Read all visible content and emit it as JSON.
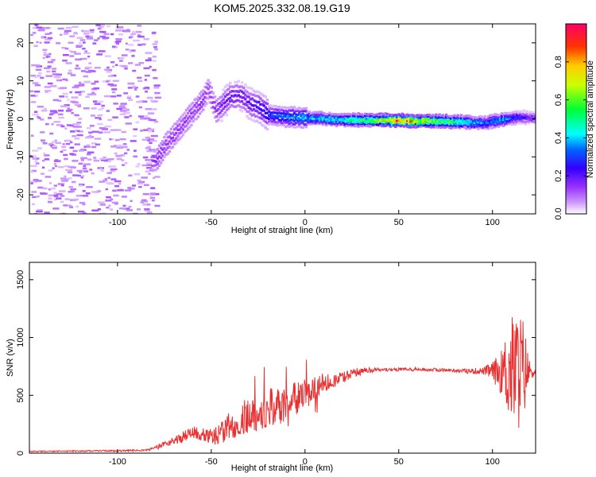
{
  "title": "KOM5.2025.332.08.19.G19",
  "chart_data": [
    {
      "type": "heatmap",
      "xlabel": "Height of straight line (km)",
      "ylabel": "Frequency (Hz)",
      "xlim": [
        -147,
        123
      ],
      "ylim": [
        -25,
        25
      ],
      "xticks": [
        -100,
        -50,
        0,
        50,
        100
      ],
      "yticks": [
        -20,
        -10,
        0,
        10,
        20
      ],
      "colorbar": {
        "label": "Normalized spectral amplitude",
        "range": [
          0,
          1
        ],
        "ticks": [
          "0.0",
          "0.2",
          "0.4",
          "0.6",
          "0.8"
        ],
        "tick_values": [
          0.0,
          0.2,
          0.4,
          0.6,
          0.8
        ]
      },
      "ridge": {
        "height_km": [
          -80,
          -75,
          -70,
          -65,
          -60,
          -55,
          -52,
          -48,
          -44,
          -40,
          -35,
          -30,
          -25,
          -20,
          -10,
          0,
          10,
          20,
          30,
          40,
          50,
          60,
          70,
          80,
          90,
          95,
          100,
          105,
          110,
          115,
          120
        ],
        "frequency_hz": [
          -11,
          -7,
          -4,
          -1,
          2,
          5,
          8,
          2,
          4,
          6,
          6,
          4,
          3,
          1,
          0.5,
          0.3,
          0,
          -0.2,
          -0.3,
          -0.3,
          -0.4,
          -0.5,
          -0.6,
          -0.7,
          -0.9,
          -1.1,
          -0.5,
          -0.2,
          0.2,
          0.5,
          0.3
        ],
        "amplitude": [
          0.15,
          0.15,
          0.15,
          0.15,
          0.15,
          0.15,
          0.15,
          0.15,
          0.2,
          0.2,
          0.2,
          0.22,
          0.25,
          0.3,
          0.35,
          0.4,
          0.45,
          0.5,
          0.55,
          0.7,
          0.95,
          0.75,
          0.65,
          0.55,
          0.45,
          0.35,
          0.4,
          0.45,
          0.3,
          0.25,
          0.2
        ]
      }
    },
    {
      "type": "line",
      "xlabel": "Height of straight line (km)",
      "ylabel": "SNR (v/v)",
      "xlim": [
        -147,
        123
      ],
      "ylim": [
        0,
        1650
      ],
      "xticks": [
        -100,
        -50,
        0,
        50,
        100
      ],
      "yticks": [
        0,
        500,
        1000,
        1500
      ],
      "color": "#e83030",
      "envelope": {
        "x": [
          -147,
          -120,
          -100,
          -85,
          -80,
          -75,
          -70,
          -65,
          -60,
          -55,
          -50,
          -45,
          -40,
          -35,
          -30,
          -25,
          -20,
          -15,
          -10,
          -5,
          0,
          5,
          10,
          15,
          20,
          25,
          30,
          40,
          50,
          60,
          70,
          80,
          85,
          90,
          95,
          100,
          105,
          110,
          115,
          120,
          123
        ],
        "snr": [
          15,
          18,
          20,
          25,
          40,
          80,
          110,
          140,
          170,
          180,
          140,
          170,
          240,
          280,
          330,
          350,
          380,
          400,
          430,
          470,
          510,
          560,
          600,
          630,
          660,
          690,
          710,
          720,
          725,
          725,
          720,
          715,
          710,
          710,
          710,
          710,
          700,
          710,
          720,
          710,
          700
        ]
      },
      "variability": {
        "x": [
          -147,
          -85,
          -75,
          -60,
          -50,
          -40,
          -30,
          -20,
          -10,
          0,
          20,
          40,
          80,
          95,
          100,
          105,
          108,
          112,
          116,
          120,
          123
        ],
        "amplitude": [
          5,
          8,
          25,
          60,
          70,
          120,
          160,
          180,
          160,
          130,
          50,
          15,
          15,
          30,
          80,
          200,
          400,
          550,
          500,
          80,
          20
        ]
      }
    }
  ]
}
